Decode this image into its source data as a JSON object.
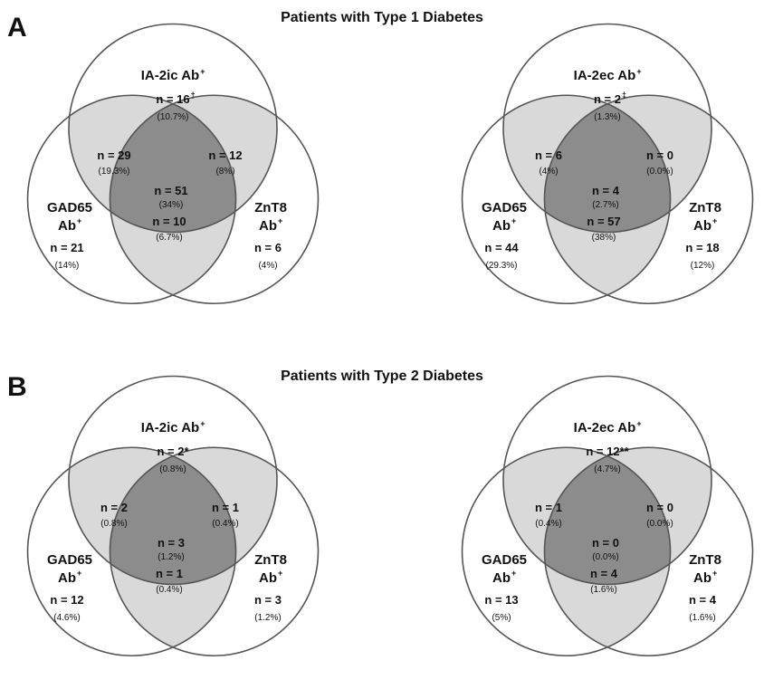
{
  "panels": [
    {
      "letter": "A",
      "title": "Patients with Type 1 Diabetes",
      "venns": [
        {
          "colors": {
            "pair": "#d9d9d9",
            "triple": "#8c8c8c"
          },
          "top": {
            "label": "IA-2ic Ab",
            "sup": "+",
            "count": "n = 16",
            "count_sup": "†",
            "pct": "(10.7%)"
          },
          "left": {
            "label1": "GAD65",
            "label2": "Ab",
            "sup": "+",
            "count": "n = 21",
            "pct": "(14%)"
          },
          "right": {
            "label1": "ZnT8",
            "label2": "Ab",
            "sup": "+",
            "count": "n = 6",
            "pct": "(4%)"
          },
          "top_left": {
            "count": "n = 29",
            "pct": "(19.3%)"
          },
          "top_right": {
            "count": "n = 12",
            "pct": "(8%)"
          },
          "bottom": {
            "count": "n = 10",
            "pct": "(6.7%)"
          },
          "center": {
            "count": "n = 51",
            "pct": "(34%)"
          }
        },
        {
          "colors": {
            "pair": "#d9d9d9",
            "triple": "#8c8c8c"
          },
          "top": {
            "label": "IA-2ec Ab",
            "sup": "+",
            "count": "n = 2",
            "count_sup": "‡",
            "pct": "(1.3%)"
          },
          "left": {
            "label1": "GAD65",
            "label2": "Ab",
            "sup": "+",
            "count": "n = 44",
            "pct": "(29.3%)"
          },
          "right": {
            "label1": "ZnT8",
            "label2": "Ab",
            "sup": "+",
            "count": "n = 18",
            "pct": "(12%)"
          },
          "top_left": {
            "count": "n = 6",
            "pct": "(4%)"
          },
          "top_right": {
            "count": "n = 0",
            "pct": "(0.0%)"
          },
          "bottom": {
            "count": "n = 57",
            "pct": "(38%)"
          },
          "center": {
            "count": "n = 4",
            "pct": "(2.7%)"
          }
        }
      ]
    },
    {
      "letter": "B",
      "title": "Patients with Type 2 Diabetes",
      "venns": [
        {
          "colors": {
            "pair": "#d9d9d9",
            "triple": "#8c8c8c"
          },
          "top": {
            "label": "IA-2ic Ab",
            "sup": "+",
            "count": "n = 2*",
            "count_sup": "",
            "pct": "(0.8%)"
          },
          "left": {
            "label1": "GAD65",
            "label2": "Ab",
            "sup": "+",
            "count": "n = 12",
            "pct": "(4.6%)"
          },
          "right": {
            "label1": "ZnT8",
            "label2": "Ab",
            "sup": "+",
            "count": "n = 3",
            "pct": "(1.2%)"
          },
          "top_left": {
            "count": "n = 2",
            "pct": "(0.8%)"
          },
          "top_right": {
            "count": "n = 1",
            "pct": "(0.4%)"
          },
          "bottom": {
            "count": "n = 1",
            "pct": "(0.4%)"
          },
          "center": {
            "count": "n = 3",
            "pct": "(1.2%)"
          }
        },
        {
          "colors": {
            "pair": "#d9d9d9",
            "triple": "#8c8c8c"
          },
          "top": {
            "label": "IA-2ec Ab",
            "sup": "+",
            "count": "n = 12**",
            "count_sup": "",
            "pct": "(4.7%)"
          },
          "left": {
            "label1": "GAD65",
            "label2": "Ab",
            "sup": "+",
            "count": "n = 13",
            "pct": "(5%)"
          },
          "right": {
            "label1": "ZnT8",
            "label2": "Ab",
            "sup": "+",
            "count": "n = 4",
            "pct": "(1.6%)"
          },
          "top_left": {
            "count": "n = 1",
            "pct": "(0.4%)"
          },
          "top_right": {
            "count": "n = 0",
            "pct": "(0.0%)"
          },
          "bottom": {
            "count": "n = 4",
            "pct": "(1.6%)"
          },
          "center": {
            "count": "n = 0",
            "pct": "(0.0%)"
          }
        }
      ]
    }
  ]
}
